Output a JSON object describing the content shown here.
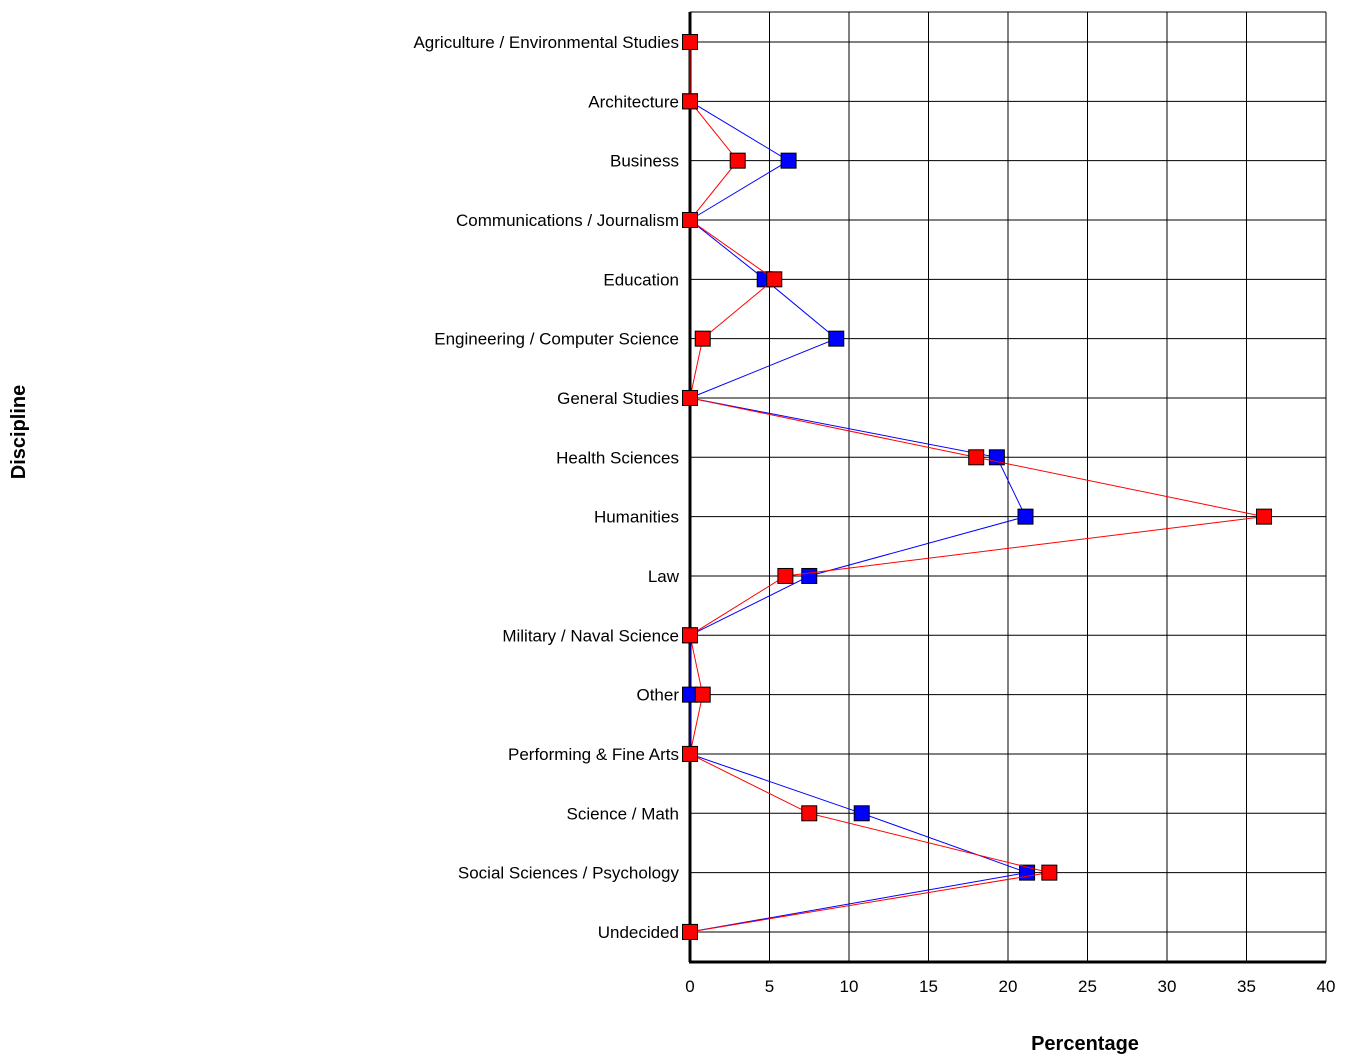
{
  "chart_data": {
    "type": "line",
    "orientation": "horizontal",
    "title": "",
    "xlabel": "Percentage",
    "ylabel": "Discipline",
    "xlim": [
      0,
      40
    ],
    "xticks": [
      0,
      5,
      10,
      15,
      20,
      25,
      30,
      35,
      40
    ],
    "grid": true,
    "legend": "none",
    "categories": [
      "Agriculture / Environmental Studies",
      "Architecture",
      "Business",
      "Communications / Journalism",
      "Education",
      "Engineering / Computer Science",
      "General Studies",
      "Health Sciences",
      "Humanities",
      "Law",
      "Military / Naval Science",
      "Other",
      "Performing & Fine Arts",
      "Science / Math",
      "Social Sciences / Psychology",
      "Undecided"
    ],
    "series": [
      {
        "color": "#0000ff",
        "values": [
          0,
          0,
          6.2,
          0,
          4.7,
          9.2,
          0,
          19.3,
          21.1,
          7.5,
          0,
          0,
          0,
          10.8,
          21.2,
          0
        ]
      },
      {
        "color": "#ff0000",
        "values": [
          0,
          0,
          3.0,
          0,
          5.3,
          0.8,
          0,
          18.0,
          36.1,
          6.0,
          0,
          0.8,
          0,
          7.5,
          22.6,
          0
        ]
      }
    ]
  }
}
